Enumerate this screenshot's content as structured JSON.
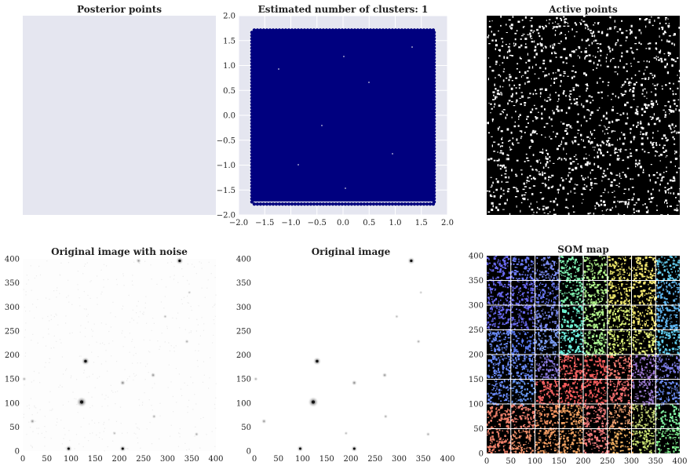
{
  "chart_data": [
    {
      "id": "posterior",
      "type": "scatter",
      "title": "Posterior points",
      "background": "#e5e6f0",
      "x": [],
      "y": [],
      "xticks": [],
      "yticks": []
    },
    {
      "id": "clusters",
      "type": "scatter",
      "title": "Estimated number of clusters: 1",
      "background": "#e5e6f0",
      "point_color": "#00007f",
      "cluster_count": 1,
      "xlim": [
        -2.0,
        2.0
      ],
      "ylim": [
        -2.0,
        2.0
      ],
      "point_extent": [
        -1.73,
        1.73
      ],
      "xticks": [
        "−2.0",
        "−1.5",
        "−1.0",
        "−0.5",
        "0.0",
        "0.5",
        "1.0",
        "1.5",
        "2.0"
      ],
      "yticks": [
        "−2.0",
        "−1.5",
        "−1.0",
        "−0.5",
        "0.0",
        "0.5",
        "1.0",
        "1.5",
        "2.0"
      ],
      "grid": true
    },
    {
      "id": "active",
      "type": "heatmap",
      "title": "Active points",
      "background": "#000000",
      "point_color": "#ffffff",
      "xticks": [],
      "yticks": []
    },
    {
      "id": "noisy",
      "type": "heatmap",
      "title": "Original image with noise",
      "xlim": [
        0,
        400
      ],
      "ylim": [
        0,
        400
      ],
      "xticks": [
        "0",
        "50",
        "100",
        "150",
        "200",
        "250",
        "300",
        "350",
        "400"
      ],
      "yticks": [
        "0",
        "50",
        "100",
        "150",
        "200",
        "250",
        "300",
        "350",
        "400"
      ],
      "sources": [
        {
          "x": 122,
          "y": 102,
          "s": 1.0
        },
        {
          "x": 130,
          "y": 187,
          "s": 0.7
        },
        {
          "x": 325,
          "y": 396,
          "s": 0.6
        },
        {
          "x": 95,
          "y": 5,
          "s": 0.5
        },
        {
          "x": 207,
          "y": 5,
          "s": 0.5
        },
        {
          "x": 207,
          "y": 142,
          "s": 0.35
        },
        {
          "x": 270,
          "y": 158,
          "s": 0.3
        },
        {
          "x": 20,
          "y": 62,
          "s": 0.3
        },
        {
          "x": 240,
          "y": 396,
          "s": 0.3
        },
        {
          "x": 340,
          "y": 228,
          "s": 0.2
        },
        {
          "x": 360,
          "y": 35,
          "s": 0.2
        },
        {
          "x": 272,
          "y": 72,
          "s": 0.2
        },
        {
          "x": 295,
          "y": 280,
          "s": 0.15
        },
        {
          "x": 3,
          "y": 150,
          "s": 0.2
        },
        {
          "x": 190,
          "y": 37,
          "s": 0.15
        },
        {
          "x": 345,
          "y": 330,
          "s": 0.1
        }
      ]
    },
    {
      "id": "original",
      "type": "heatmap",
      "title": "Original image",
      "xlim": [
        0,
        400
      ],
      "ylim": [
        0,
        400
      ],
      "xticks": [
        "0",
        "50",
        "100",
        "150",
        "200",
        "250",
        "300",
        "350",
        "400"
      ],
      "yticks": [
        "0",
        "50",
        "100",
        "150",
        "200",
        "250",
        "300",
        "350",
        "400"
      ],
      "sources": [
        {
          "x": 122,
          "y": 102,
          "s": 1.0
        },
        {
          "x": 130,
          "y": 187,
          "s": 0.7
        },
        {
          "x": 325,
          "y": 396,
          "s": 0.6
        },
        {
          "x": 95,
          "y": 5,
          "s": 0.5
        },
        {
          "x": 207,
          "y": 5,
          "s": 0.5
        },
        {
          "x": 207,
          "y": 142,
          "s": 0.35
        },
        {
          "x": 270,
          "y": 158,
          "s": 0.3
        },
        {
          "x": 20,
          "y": 62,
          "s": 0.3
        },
        {
          "x": 340,
          "y": 228,
          "s": 0.2
        },
        {
          "x": 360,
          "y": 35,
          "s": 0.2
        },
        {
          "x": 272,
          "y": 72,
          "s": 0.2
        },
        {
          "x": 295,
          "y": 280,
          "s": 0.15
        },
        {
          "x": 3,
          "y": 150,
          "s": 0.2
        },
        {
          "x": 190,
          "y": 37,
          "s": 0.15
        },
        {
          "x": 345,
          "y": 330,
          "s": 0.1
        }
      ]
    },
    {
      "id": "som",
      "type": "heatmap",
      "title": "SOM map",
      "background": "#000000",
      "grid_color": "#ffffff",
      "xlim": [
        0,
        400
      ],
      "ylim": [
        0,
        400
      ],
      "xticks": [
        "0",
        "50",
        "100",
        "150",
        "200",
        "250",
        "300",
        "350",
        "400"
      ],
      "yticks": [
        "0",
        "50",
        "100",
        "150",
        "200",
        "250",
        "300",
        "350",
        "400"
      ],
      "cell_colors_top_to_bottom": [
        [
          "#6a6af2",
          "#6a7af8",
          "#7a8af0",
          "#7ff2b0",
          "#b0f28a",
          "#e6e067",
          "#f2e56e",
          "#62cdf0"
        ],
        [
          "#6a6af2",
          "#6a6af2",
          "#6a7af8",
          "#7ff2b0",
          "#b0f28a",
          "#e6e067",
          "#f2e56e",
          "#5fb5f0"
        ],
        [
          "#6a6af2",
          "#6a6af2",
          "#7a8af0",
          "#6ef2d0",
          "#b0f28a",
          "#d9f076",
          "#f2e56e",
          "#5fb5f0"
        ],
        [
          "#6a8af8",
          "#5a7af0",
          "#7a9af0",
          "#6ef2e0",
          "#a8f08f",
          "#d9f076",
          "#e6f07a",
          "#5fcdf0"
        ],
        [
          "#6a8af8",
          "#6a8af8",
          "#8a7ae0",
          "#f26060",
          "#f25a5a",
          "#f07a70",
          "#a07ad8",
          "#7a7ae0"
        ],
        [
          "#6a8af8",
          "#6a9af8",
          "#f26060",
          "#f25a5a",
          "#f25a5a",
          "#f06e6e",
          "#9a7ad0",
          "#6a8af0"
        ],
        [
          "#f0806a",
          "#f08070",
          "#f09060",
          "#f0a060",
          "#f07a7a",
          "#f0a070",
          "#c0d070",
          "#80f0a0"
        ],
        [
          "#f0806a",
          "#f0906a",
          "#f09a60",
          "#f0a060",
          "#f07a7a",
          "#f0b060",
          "#c8e070",
          "#80f090"
        ]
      ]
    }
  ]
}
